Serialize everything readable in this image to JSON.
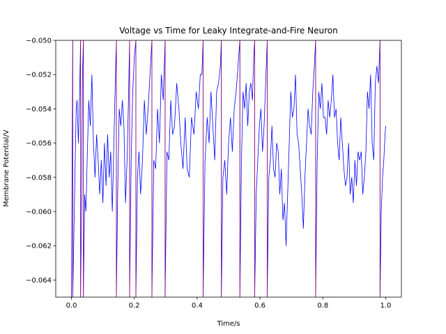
{
  "chart_data": {
    "type": "line",
    "title": "Voltage vs Time for Leaky Integrate-and-Fire Neuron",
    "x_label": "Time/s",
    "y_label": "Membrane Potential/V",
    "xlim": [
      -0.05,
      1.05
    ],
    "ylim": [
      -0.065,
      -0.05
    ],
    "xticks": [
      {
        "value": 0,
        "label": "0.0"
      },
      {
        "value": 0.2,
        "label": "0.2"
      },
      {
        "value": 0.4,
        "label": "0.4"
      },
      {
        "value": 0.6,
        "label": "0.6"
      },
      {
        "value": 0.8,
        "label": "0.8"
      },
      {
        "value": 1,
        "label": "1.0"
      }
    ],
    "yticks": [
      {
        "value": -0.064,
        "label": "−0.064"
      },
      {
        "value": -0.062,
        "label": "−0.062"
      },
      {
        "value": -0.06,
        "label": "−0.060"
      },
      {
        "value": -0.058,
        "label": "−0.058"
      },
      {
        "value": -0.056,
        "label": "−0.056"
      },
      {
        "value": -0.054,
        "label": "−0.054"
      },
      {
        "value": -0.052,
        "label": "−0.052"
      },
      {
        "value": -0.05,
        "label": "−0.050"
      }
    ],
    "series": [
      {
        "color": "#0000ff",
        "x": [
          0.0,
          0.004,
          0.004,
          0.01,
          0.015,
          0.018,
          0.022,
          0.026,
          0.029,
          0.029,
          0.032,
          0.035,
          0.038,
          0.038,
          0.042,
          0.046,
          0.05,
          0.055,
          0.06,
          0.065,
          0.07,
          0.075,
          0.08,
          0.085,
          0.09,
          0.095,
          0.1,
          0.105,
          0.11,
          0.115,
          0.12,
          0.125,
          0.13,
          0.135,
          0.14,
          0.143,
          0.143,
          0.147,
          0.152,
          0.157,
          0.162,
          0.167,
          0.172,
          0.177,
          0.182,
          0.185,
          0.185,
          0.19,
          0.195,
          0.2,
          0.205,
          0.205,
          0.21,
          0.215,
          0.22,
          0.226,
          0.232,
          0.238,
          0.244,
          0.25,
          0.256,
          0.256,
          0.262,
          0.268,
          0.274,
          0.28,
          0.286,
          0.292,
          0.298,
          0.298,
          0.304,
          0.31,
          0.316,
          0.322,
          0.328,
          0.335,
          0.342,
          0.348,
          0.355,
          0.362,
          0.368,
          0.375,
          0.382,
          0.39,
          0.397,
          0.404,
          0.41,
          0.415,
          0.419,
          0.419,
          0.425,
          0.432,
          0.438,
          0.444,
          0.45,
          0.456,
          0.462,
          0.468,
          0.474,
          0.477,
          0.477,
          0.482,
          0.488,
          0.494,
          0.5,
          0.506,
          0.512,
          0.518,
          0.524,
          0.53,
          0.536,
          0.536,
          0.541,
          0.546,
          0.551,
          0.556,
          0.561,
          0.566,
          0.571,
          0.576,
          0.58,
          0.583,
          0.583,
          0.588,
          0.593,
          0.598,
          0.603,
          0.608,
          0.613,
          0.618,
          0.623,
          0.623,
          0.628,
          0.633,
          0.638,
          0.643,
          0.648,
          0.653,
          0.658,
          0.663,
          0.668,
          0.673,
          0.678,
          0.683,
          0.688,
          0.693,
          0.698,
          0.703,
          0.708,
          0.713,
          0.718,
          0.723,
          0.728,
          0.733,
          0.738,
          0.743,
          0.748,
          0.753,
          0.758,
          0.763,
          0.768,
          0.773,
          0.777,
          0.777,
          0.782,
          0.787,
          0.792,
          0.797,
          0.802,
          0.807,
          0.812,
          0.817,
          0.822,
          0.827,
          0.832,
          0.837,
          0.842,
          0.847,
          0.852,
          0.857,
          0.862,
          0.867,
          0.872,
          0.877,
          0.882,
          0.887,
          0.892,
          0.897,
          0.902,
          0.907,
          0.912,
          0.917,
          0.922,
          0.927,
          0.932,
          0.937,
          0.942,
          0.947,
          0.952,
          0.957,
          0.962,
          0.967,
          0.972,
          0.977,
          0.982,
          0.982,
          0.986,
          0.99,
          0.994,
          0.998,
          1.0
        ],
        "values": [
          -0.065,
          -0.05,
          -0.065,
          -0.059,
          -0.054,
          -0.0535,
          -0.056,
          -0.053,
          -0.05,
          -0.065,
          -0.06,
          -0.052,
          -0.05,
          -0.065,
          -0.059,
          -0.06,
          -0.057,
          -0.0535,
          -0.055,
          -0.052,
          -0.056,
          -0.058,
          -0.0555,
          -0.057,
          -0.059,
          -0.057,
          -0.0595,
          -0.056,
          -0.0585,
          -0.0555,
          -0.058,
          -0.0565,
          -0.06,
          -0.056,
          -0.052,
          -0.05,
          -0.065,
          -0.059,
          -0.054,
          -0.055,
          -0.0535,
          -0.055,
          -0.0595,
          -0.057,
          -0.053,
          -0.05,
          -0.065,
          -0.057,
          -0.053,
          -0.051,
          -0.05,
          -0.065,
          -0.058,
          -0.0565,
          -0.059,
          -0.057,
          -0.0535,
          -0.0555,
          -0.054,
          -0.052,
          -0.05,
          -0.065,
          -0.057,
          -0.0575,
          -0.054,
          -0.056,
          -0.052,
          -0.0535,
          -0.05,
          -0.065,
          -0.0565,
          -0.057,
          -0.0535,
          -0.0555,
          -0.055,
          -0.0525,
          -0.054,
          -0.056,
          -0.0575,
          -0.0545,
          -0.0575,
          -0.058,
          -0.0545,
          -0.0555,
          -0.053,
          -0.054,
          -0.052,
          -0.052,
          -0.05,
          -0.065,
          -0.057,
          -0.0545,
          -0.056,
          -0.053,
          -0.055,
          -0.057,
          -0.053,
          -0.0525,
          -0.0515,
          -0.05,
          -0.065,
          -0.058,
          -0.057,
          -0.059,
          -0.056,
          -0.0545,
          -0.0565,
          -0.054,
          -0.053,
          -0.0515,
          -0.05,
          -0.065,
          -0.057,
          -0.053,
          -0.054,
          -0.0525,
          -0.055,
          -0.053,
          -0.0525,
          -0.0535,
          -0.051,
          -0.05,
          -0.065,
          -0.059,
          -0.057,
          -0.055,
          -0.054,
          -0.0565,
          -0.055,
          -0.0525,
          -0.05,
          -0.065,
          -0.058,
          -0.057,
          -0.055,
          -0.0575,
          -0.058,
          -0.056,
          -0.0565,
          -0.059,
          -0.0575,
          -0.0605,
          -0.0595,
          -0.062,
          -0.059,
          -0.056,
          -0.053,
          -0.0545,
          -0.054,
          -0.052,
          -0.0555,
          -0.056,
          -0.0575,
          -0.059,
          -0.061,
          -0.058,
          -0.056,
          -0.054,
          -0.055,
          -0.0555,
          -0.053,
          -0.0515,
          -0.05,
          -0.065,
          -0.057,
          -0.053,
          -0.054,
          -0.0525,
          -0.0545,
          -0.0545,
          -0.0555,
          -0.0535,
          -0.0545,
          -0.0535,
          -0.052,
          -0.0545,
          -0.054,
          -0.056,
          -0.057,
          -0.0545,
          -0.056,
          -0.0575,
          -0.0585,
          -0.058,
          -0.056,
          -0.059,
          -0.058,
          -0.0595,
          -0.057,
          -0.0585,
          -0.0565,
          -0.057,
          -0.0565,
          -0.059,
          -0.058,
          -0.0565,
          -0.053,
          -0.054,
          -0.052,
          -0.056,
          -0.057,
          -0.0525,
          -0.0515,
          -0.0525,
          -0.05,
          -0.065,
          -0.06,
          -0.058,
          -0.057,
          -0.0555,
          -0.055
        ]
      }
    ],
    "spike_times": {
      "color": "#ff0000",
      "x": [
        0.004,
        0.029,
        0.038,
        0.143,
        0.185,
        0.205,
        0.256,
        0.298,
        0.419,
        0.477,
        0.536,
        0.583,
        0.623,
        0.777,
        0.982
      ]
    }
  }
}
